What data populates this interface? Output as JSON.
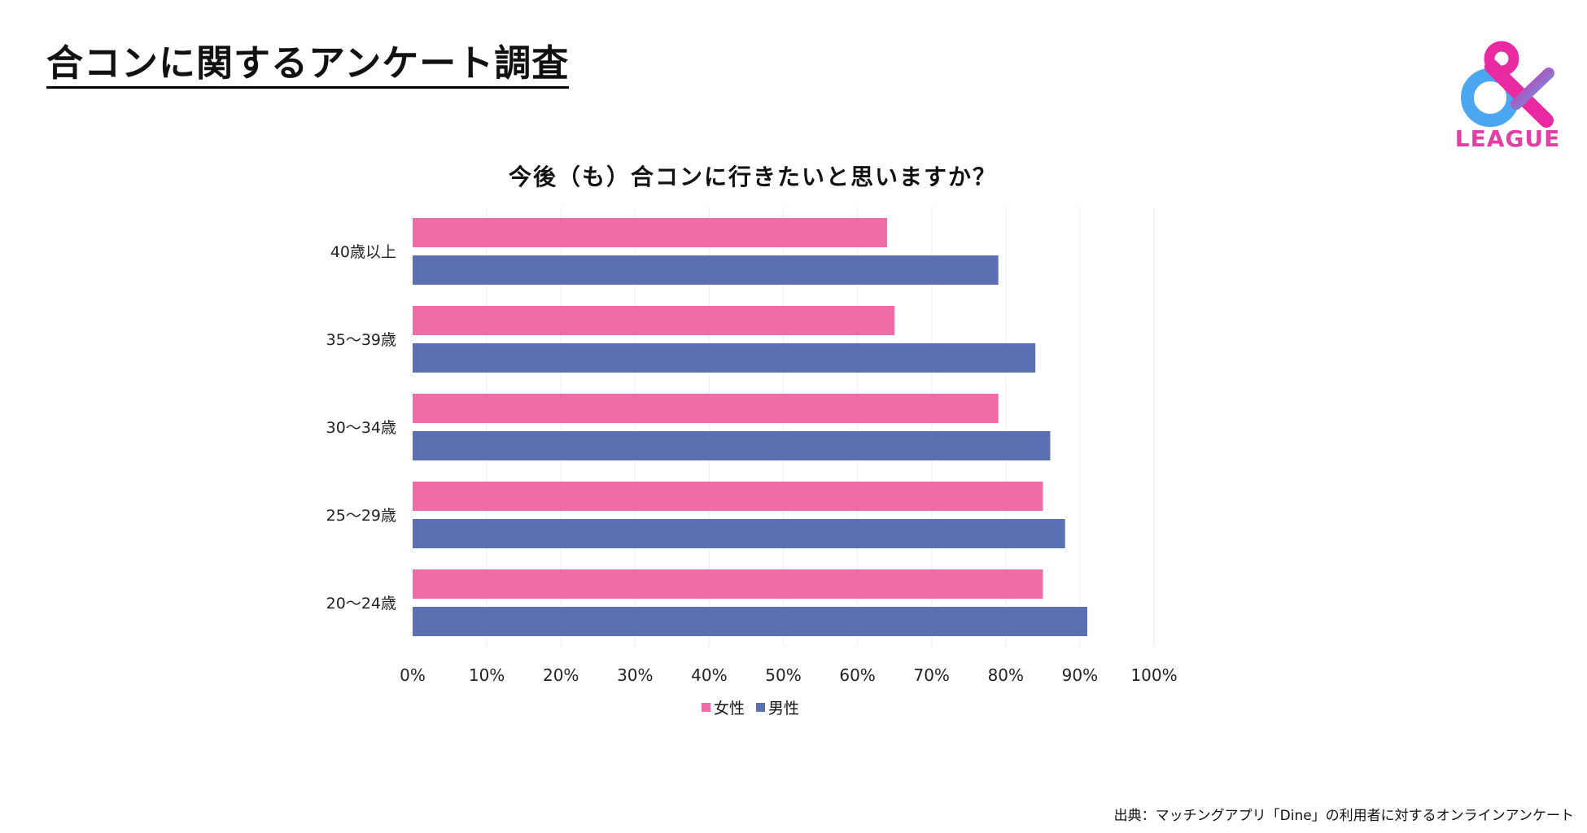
{
  "title": "合コンに関するアンケート調査",
  "logo": {
    "symbol": "&",
    "text": "LEAGUE"
  },
  "source": "出典：マッチングアプリ「Dine」の利用者に対するオンラインアンケート",
  "colors": {
    "female": "#f06ca6",
    "male": "#5b70b2",
    "logo_pink": "#e92aa3",
    "logo_blue": "#4aa7f0"
  },
  "chart_data": {
    "type": "bar",
    "orientation": "horizontal",
    "title": "今後（も）合コンに行きたいと思いますか？",
    "categories": [
      "40歳以上",
      "35〜39歳",
      "30〜34歳",
      "25〜29歳",
      "20〜24歳"
    ],
    "series": [
      {
        "name": "女性",
        "color": "#f06ca6",
        "values": [
          64,
          65,
          79,
          85,
          85
        ]
      },
      {
        "name": "男性",
        "color": "#5b70b2",
        "values": [
          79,
          84,
          86,
          88,
          91
        ]
      }
    ],
    "x_ticks": [
      "0%",
      "10%",
      "20%",
      "30%",
      "40%",
      "50%",
      "60%",
      "70%",
      "80%",
      "90%",
      "100%"
    ],
    "xlim": [
      0,
      100
    ],
    "grid": true,
    "legend_position": "bottom"
  }
}
